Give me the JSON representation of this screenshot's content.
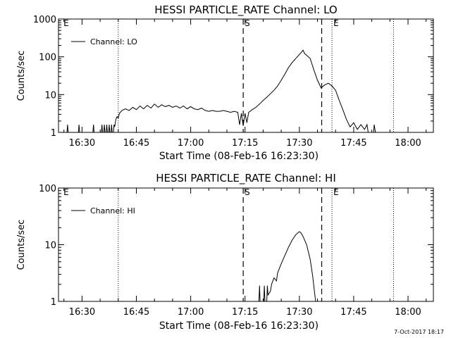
{
  "chart_data": [
    {
      "type": "line",
      "title": "HESSI PARTICLE_RATE Channel: LO",
      "xlabel": "Start Time (08-Feb-16 16:23:30)",
      "ylabel": "Counts/sec",
      "yscale": "log",
      "ylim": [
        1,
        1000
      ],
      "xlim": [
        "16:23:30",
        "18:07:00"
      ],
      "x_ticks": [
        "16:30",
        "16:45",
        "17:00",
        "17:15",
        "17:30",
        "17:45",
        "18:00"
      ],
      "y_ticks": [
        "1",
        "10",
        "100",
        "1000"
      ],
      "legend": {
        "entries": [
          "Channel: LO"
        ],
        "position": "top-left"
      },
      "markers": [
        {
          "label": "E",
          "time": "16:24:30",
          "style": "text-only"
        },
        {
          "label": "",
          "time": "16:40:00",
          "style": "dotted"
        },
        {
          "label": "S",
          "time": "17:14:30",
          "style": "dashed"
        },
        {
          "label": "",
          "time": "17:36:10",
          "style": "dashed"
        },
        {
          "label": "E",
          "time": "17:39:00",
          "style": "dotted"
        },
        {
          "label": "",
          "time": "17:56:00",
          "style": "dotted"
        }
      ],
      "series": [
        {
          "name": "Channel: LO",
          "points": [
            [
              "16:25:50",
              1
            ],
            [
              "16:26:00",
              1.6
            ],
            [
              "16:26:10",
              1
            ],
            [
              "16:29:00",
              1
            ],
            [
              "16:29:10",
              1.6
            ],
            [
              "16:29:20",
              1
            ],
            [
              "16:33:00",
              1
            ],
            [
              "16:33:10",
              1.6
            ],
            [
              "16:33:20",
              1
            ],
            [
              "16:35:20",
              1
            ],
            [
              "16:35:30",
              1.6
            ],
            [
              "16:35:40",
              1
            ],
            [
              "16:36:00",
              1
            ],
            [
              "16:36:10",
              1.6
            ],
            [
              "16:36:20",
              1
            ],
            [
              "16:36:40",
              1
            ],
            [
              "16:36:50",
              1.6
            ],
            [
              "16:37:00",
              1
            ],
            [
              "16:37:20",
              1
            ],
            [
              "16:37:30",
              1.6
            ],
            [
              "16:37:40",
              1
            ],
            [
              "16:38:00",
              1
            ],
            [
              "16:38:10",
              1.6
            ],
            [
              "16:38:20",
              1
            ],
            [
              "16:38:40",
              1
            ],
            [
              "16:38:50",
              1.6
            ],
            [
              "16:39:00",
              1.4
            ],
            [
              "16:39:20",
              2.2
            ],
            [
              "16:39:40",
              2.6
            ],
            [
              "16:40:00",
              2.4
            ],
            [
              "16:40:20",
              3.2
            ],
            [
              "16:41:00",
              3.8
            ],
            [
              "16:42:00",
              4.2
            ],
            [
              "16:43:00",
              3.8
            ],
            [
              "16:44:00",
              4.6
            ],
            [
              "16:45:00",
              4.0
            ],
            [
              "16:46:00",
              5.0
            ],
            [
              "16:47:00",
              4.2
            ],
            [
              "16:48:00",
              5.2
            ],
            [
              "16:49:00",
              4.4
            ],
            [
              "16:50:00",
              5.6
            ],
            [
              "16:51:00",
              4.6
            ],
            [
              "16:52:00",
              5.4
            ],
            [
              "16:53:00",
              4.8
            ],
            [
              "16:54:00",
              5.2
            ],
            [
              "16:55:00",
              4.6
            ],
            [
              "16:56:00",
              5.0
            ],
            [
              "16:57:00",
              4.4
            ],
            [
              "16:58:00",
              5.0
            ],
            [
              "16:59:00",
              4.2
            ],
            [
              "17:00:00",
              4.8
            ],
            [
              "17:01:00",
              4.2
            ],
            [
              "17:02:00",
              4.0
            ],
            [
              "17:03:00",
              4.4
            ],
            [
              "17:04:00",
              3.8
            ],
            [
              "17:05:00",
              3.6
            ],
            [
              "17:06:00",
              3.8
            ],
            [
              "17:07:00",
              3.6
            ],
            [
              "17:08:00",
              3.6
            ],
            [
              "17:09:00",
              3.8
            ],
            [
              "17:10:00",
              3.6
            ],
            [
              "17:11:00",
              3.4
            ],
            [
              "17:12:00",
              3.6
            ],
            [
              "17:13:00",
              3.4
            ],
            [
              "17:13:30",
              1.6
            ],
            [
              "17:14:00",
              3.2
            ],
            [
              "17:14:30",
              1.5
            ],
            [
              "17:15:00",
              3.2
            ],
            [
              "17:15:30",
              1.8
            ],
            [
              "17:16:00",
              3.4
            ],
            [
              "17:17:00",
              4.0
            ],
            [
              "17:18:00",
              4.6
            ],
            [
              "17:19:00",
              5.6
            ],
            [
              "17:20:00",
              7.0
            ],
            [
              "17:21:00",
              8.5
            ],
            [
              "17:22:00",
              10.5
            ],
            [
              "17:23:00",
              13
            ],
            [
              "17:24:00",
              17
            ],
            [
              "17:25:00",
              24
            ],
            [
              "17:26:00",
              35
            ],
            [
              "17:27:00",
              52
            ],
            [
              "17:28:00",
              70
            ],
            [
              "17:29:00",
              90
            ],
            [
              "17:30:00",
              115
            ],
            [
              "17:30:40",
              135
            ],
            [
              "17:31:00",
              150
            ],
            [
              "17:31:30",
              120
            ],
            [
              "17:32:00",
              110
            ],
            [
              "17:33:00",
              90
            ],
            [
              "17:34:00",
              45
            ],
            [
              "17:35:00",
              24
            ],
            [
              "17:36:00",
              15
            ],
            [
              "17:37:00",
              18
            ],
            [
              "17:38:00",
              20
            ],
            [
              "17:39:00",
              17
            ],
            [
              "17:40:00",
              13
            ],
            [
              "17:41:00",
              7
            ],
            [
              "17:42:00",
              4
            ],
            [
              "17:43:00",
              2.2
            ],
            [
              "17:44:00",
              1.4
            ],
            [
              "17:45:00",
              1.8
            ],
            [
              "17:46:00",
              1.2
            ],
            [
              "17:47:00",
              1.6
            ],
            [
              "17:48:00",
              1.2
            ],
            [
              "17:48:40",
              1.6
            ],
            [
              "17:49:00",
              1
            ],
            [
              "17:50:30",
              1
            ],
            [
              "17:50:40",
              1.6
            ],
            [
              "17:51:00",
              1
            ]
          ]
        }
      ]
    },
    {
      "type": "line",
      "title": "HESSI PARTICLE_RATE Channel: HI",
      "xlabel": "Start Time (08-Feb-16 16:23:30)",
      "ylabel": "Counts/sec",
      "yscale": "log",
      "ylim": [
        1,
        100
      ],
      "xlim": [
        "16:23:30",
        "18:07:00"
      ],
      "x_ticks": [
        "16:30",
        "16:45",
        "17:00",
        "17:15",
        "17:30",
        "17:45",
        "18:00"
      ],
      "y_ticks": [
        "1",
        "10",
        "100"
      ],
      "legend": {
        "entries": [
          "Channel: HI"
        ],
        "position": "top-left"
      },
      "markers": [
        {
          "label": "E",
          "time": "16:24:30",
          "style": "text-only"
        },
        {
          "label": "",
          "time": "16:40:00",
          "style": "dotted"
        },
        {
          "label": "S",
          "time": "17:14:30",
          "style": "dashed"
        },
        {
          "label": "",
          "time": "17:36:10",
          "style": "dashed"
        },
        {
          "label": "E",
          "time": "17:39:00",
          "style": "dotted"
        },
        {
          "label": "",
          "time": "17:56:00",
          "style": "dotted"
        }
      ],
      "series": [
        {
          "name": "Channel: HI",
          "points": [
            [
              "17:18:50",
              1
            ],
            [
              "17:19:00",
              1.9
            ],
            [
              "17:19:10",
              1
            ],
            [
              "17:20:10",
              1
            ],
            [
              "17:20:20",
              1.9
            ],
            [
              "17:20:30",
              1
            ],
            [
              "17:21:00",
              1
            ],
            [
              "17:21:10",
              1.9
            ],
            [
              "17:21:20",
              1.3
            ],
            [
              "17:22:00",
              1.5
            ],
            [
              "17:22:20",
              2.0
            ],
            [
              "17:23:00",
              2.6
            ],
            [
              "17:23:40",
              2.3
            ],
            [
              "17:24:00",
              3.2
            ],
            [
              "17:25:00",
              4.6
            ],
            [
              "17:26:00",
              6.5
            ],
            [
              "17:27:00",
              9.0
            ],
            [
              "17:28:00",
              12
            ],
            [
              "17:29:00",
              15
            ],
            [
              "17:30:00",
              17
            ],
            [
              "17:30:30",
              16
            ],
            [
              "17:31:00",
              14
            ],
            [
              "17:32:00",
              10
            ],
            [
              "17:33:00",
              5.5
            ],
            [
              "17:33:40",
              2.8
            ],
            [
              "17:34:10",
              1.5
            ],
            [
              "17:34:30",
              1
            ]
          ]
        }
      ]
    }
  ],
  "footer": "7-Oct-2017 18:17"
}
